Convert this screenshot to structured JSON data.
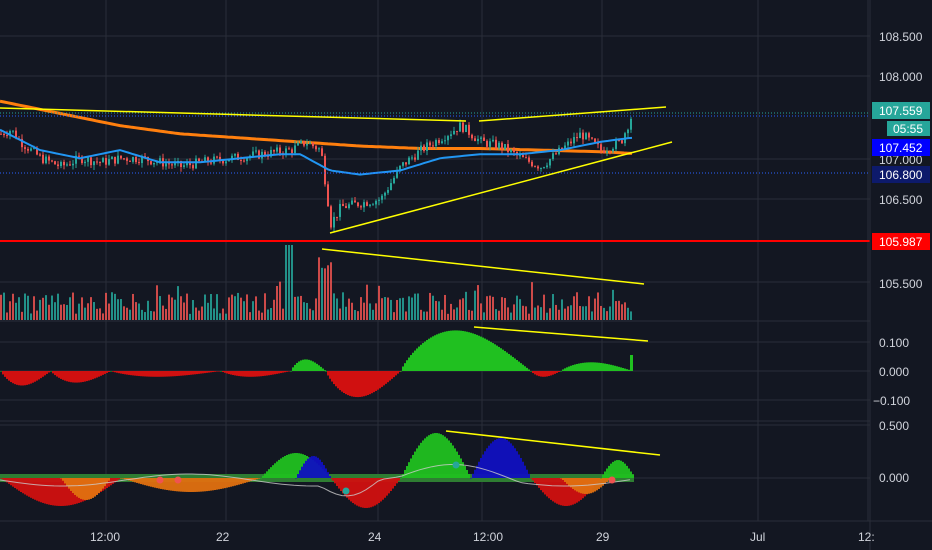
{
  "colors": {
    "background": "#131722",
    "grid": "#2a2e39",
    "text": "#d1d4dc",
    "up": "#26a69a",
    "down": "#ef5350",
    "ma_blue": "#2196f3",
    "ma_orange": "#ff7f0e",
    "trendline": "#ffff00",
    "support": "#ff0000",
    "osc_green": "#20c020",
    "osc_red": "#d01010",
    "osc_blue": "#1010c0",
    "osc_orange": "#e07010"
  },
  "axis": {
    "price_ticks": [
      "108.500",
      "108.000",
      "107.000",
      "106.500",
      "105.500"
    ],
    "macd_ticks": [
      "0.100",
      "0.000",
      "−0.100"
    ],
    "osc_ticks": [
      "0.500",
      "0.000"
    ],
    "time_ticks": [
      "12:00",
      "22",
      "24",
      "12:00",
      "29",
      "Jul",
      "12:"
    ]
  },
  "tags": {
    "last_price": "107.559",
    "countdown": "05:55",
    "ma_blue_value": "107.452",
    "level_blue": "106.800",
    "support_level": "105.987"
  },
  "chart_data": [
    {
      "type": "candlestick",
      "panel": "price",
      "y_ticks": [
        108.5,
        108.0,
        107.0,
        106.5,
        105.5
      ],
      "x_ticks": [
        "12:00",
        "22",
        "24",
        "12:00",
        "29",
        "Jul",
        "12:"
      ],
      "series": [
        {
          "kind": "price_path",
          "time_index": [
            0,
            10,
            20,
            40,
            60,
            80,
            100,
            120,
            140,
            160,
            180,
            200,
            230,
            260,
            290,
            305,
            320,
            330,
            340,
            360,
            380,
            400,
            420,
            440,
            460,
            480,
            500,
            520,
            540,
            560,
            580,
            600,
            620,
            632
          ],
          "close": [
            107.3,
            107.35,
            107.2,
            107.0,
            106.9,
            107.0,
            106.95,
            107.0,
            107.0,
            106.95,
            106.9,
            106.95,
            107.0,
            107.05,
            107.1,
            107.2,
            107.1,
            106.2,
            106.4,
            106.45,
            106.5,
            106.9,
            107.1,
            107.25,
            107.4,
            107.2,
            107.15,
            107.0,
            106.9,
            107.1,
            107.3,
            107.1,
            107.2,
            107.56
          ]
        },
        {
          "kind": "ma",
          "name": "",
          "color": "#2196f3",
          "time_index": [
            0,
            40,
            80,
            120,
            160,
            200,
            240,
            280,
            300,
            330,
            360,
            400,
            440,
            480,
            520,
            560,
            600,
            630
          ],
          "values": [
            107.35,
            107.1,
            107.0,
            107.1,
            106.95,
            106.95,
            107.0,
            107.05,
            107.05,
            106.85,
            106.8,
            106.85,
            107.0,
            107.05,
            107.05,
            107.1,
            107.2,
            107.25
          ]
        },
        {
          "kind": "ma",
          "name": "",
          "color": "#ff7f0e",
          "time_index": [
            0,
            60,
            120,
            180,
            240,
            300,
            360,
            420,
            480,
            540,
            600,
            632
          ],
          "values": [
            107.7,
            107.55,
            107.4,
            107.3,
            107.25,
            107.2,
            107.15,
            107.12,
            107.12,
            107.1,
            107.08,
            107.06
          ]
        }
      ],
      "levels": [
        106.8,
        105.987
      ],
      "last_price": 107.559
    },
    {
      "type": "bar",
      "panel": "volume",
      "note_series": "volume bars, spike near 24th"
    },
    {
      "type": "bar",
      "panel": "macd_histogram",
      "y_ticks": [
        0.1,
        0.0,
        -0.1
      ],
      "segments": [
        {
          "from": 0,
          "to": 50,
          "sign": "negative",
          "peak": -0.05
        },
        {
          "from": 50,
          "to": 110,
          "sign": "negative",
          "peak": -0.04
        },
        {
          "from": 110,
          "to": 220,
          "sign": "negative",
          "peak": -0.02
        },
        {
          "from": 220,
          "to": 290,
          "sign": "negative",
          "peak": -0.02
        },
        {
          "from": 290,
          "to": 325,
          "sign": "positive",
          "peak": 0.04
        },
        {
          "from": 325,
          "to": 400,
          "sign": "negative",
          "peak": -0.09
        },
        {
          "from": 400,
          "to": 530,
          "sign": "positive",
          "peak": 0.14
        },
        {
          "from": 530,
          "to": 560,
          "sign": "negative",
          "peak": -0.02
        },
        {
          "from": 560,
          "to": 632,
          "sign": "positive",
          "peak": 0.03
        }
      ]
    },
    {
      "type": "bar",
      "panel": "oscillator",
      "y_ticks": [
        0.5,
        0.0
      ]
    }
  ]
}
